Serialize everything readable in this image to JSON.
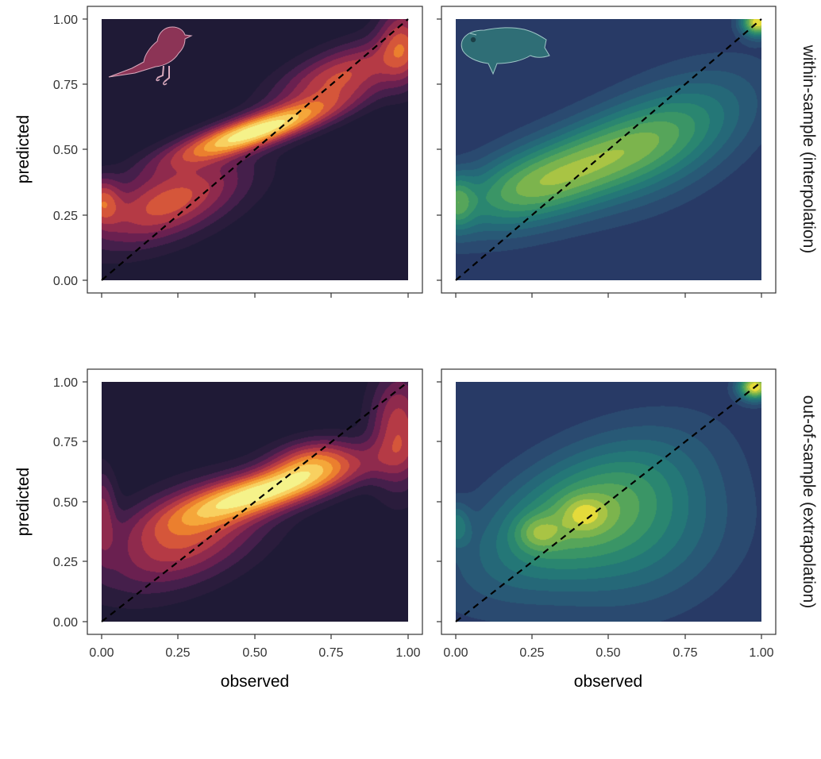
{
  "chart_data": {
    "type": "heatmap",
    "description_type": "2d-density-contour",
    "layout": {
      "rows": 2,
      "cols": 2
    },
    "xlabel": "observed",
    "ylabel": "predicted",
    "xlim": [
      0,
      1
    ],
    "ylim": [
      0,
      1
    ],
    "x_ticks": [
      "0.00",
      "0.25",
      "0.50",
      "0.75",
      "1.00"
    ],
    "y_ticks": [
      "0.00",
      "0.25",
      "0.50",
      "0.75",
      "1.00"
    ],
    "row_strips": [
      "within-sample (interpolation)",
      "out-of-sample (extrapolation)"
    ],
    "reference_line": {
      "type": "identity",
      "from": [
        0,
        0
      ],
      "to": [
        1,
        1
      ],
      "style": "dashed",
      "color": "#000000"
    },
    "palettes": {
      "inferno": [
        "#1f1a36",
        "#2a1c3c",
        "#451f4b",
        "#6a2050",
        "#8f2a4d",
        "#b53a45",
        "#d5563a",
        "#eb7f2e",
        "#f5a73a",
        "#f8d060",
        "#f5f28a"
      ],
      "viridis": [
        "#283a66",
        "#2a4a70",
        "#285976",
        "#256878",
        "#247777",
        "#2a8670",
        "#3a9566",
        "#56a55a",
        "#7cb44d",
        "#a9c444",
        "#e4db3b"
      ]
    },
    "panels": [
      {
        "row": 0,
        "col": 0,
        "taxon": "bird-icon",
        "palette": "inferno",
        "density_peaks": [
          {
            "x": 0.5,
            "y": 0.57,
            "sx": 0.17,
            "sy": 0.075,
            "rho": 0.82,
            "w": 1.0
          },
          {
            "x": 0.22,
            "y": 0.3,
            "sx": 0.16,
            "sy": 0.11,
            "rho": 0.55,
            "w": 0.55
          },
          {
            "x": 0.78,
            "y": 0.78,
            "sx": 0.14,
            "sy": 0.09,
            "rho": 0.6,
            "w": 0.5
          },
          {
            "x": 0.0,
            "y": 0.3,
            "sx": 0.04,
            "sy": 0.06,
            "rho": 0.0,
            "w": 0.45
          },
          {
            "x": 0.98,
            "y": 0.9,
            "sx": 0.05,
            "sy": 0.1,
            "rho": 0.0,
            "w": 0.45
          }
        ]
      },
      {
        "row": 0,
        "col": 1,
        "taxon": "fish-icon",
        "palette": "viridis",
        "density_peaks": [
          {
            "x": 0.42,
            "y": 0.44,
            "sx": 0.22,
            "sy": 0.14,
            "rho": 0.65,
            "w": 0.62
          },
          {
            "x": 0.0,
            "y": 0.3,
            "sx": 0.04,
            "sy": 0.07,
            "rho": 0.0,
            "w": 0.45
          },
          {
            "x": 0.99,
            "y": 0.99,
            "sx": 0.035,
            "sy": 0.035,
            "rho": 0.0,
            "w": 1.0
          },
          {
            "x": 0.7,
            "y": 0.55,
            "sx": 0.18,
            "sy": 0.16,
            "rho": 0.5,
            "w": 0.35
          },
          {
            "x": 0.2,
            "y": 0.35,
            "sx": 0.15,
            "sy": 0.1,
            "rho": 0.4,
            "w": 0.3
          }
        ]
      },
      {
        "row": 1,
        "col": 0,
        "taxon": "bird",
        "palette": "inferno",
        "density_peaks": [
          {
            "x": 0.55,
            "y": 0.55,
            "sx": 0.2,
            "sy": 0.09,
            "rho": 0.75,
            "w": 1.0
          },
          {
            "x": 0.27,
            "y": 0.35,
            "sx": 0.17,
            "sy": 0.14,
            "rho": 0.45,
            "w": 0.55
          },
          {
            "x": 0.68,
            "y": 0.68,
            "sx": 0.09,
            "sy": 0.06,
            "rho": 0.3,
            "w": 0.45
          },
          {
            "x": 0.97,
            "y": 0.8,
            "sx": 0.06,
            "sy": 0.16,
            "rho": 0.0,
            "w": 0.5
          },
          {
            "x": 0.0,
            "y": 0.45,
            "sx": 0.03,
            "sy": 0.12,
            "rho": 0.0,
            "w": 0.35
          }
        ]
      },
      {
        "row": 1,
        "col": 1,
        "taxon": "fish",
        "palette": "viridis",
        "density_peaks": [
          {
            "x": 0.4,
            "y": 0.45,
            "sx": 0.22,
            "sy": 0.2,
            "rho": 0.55,
            "w": 0.55
          },
          {
            "x": 0.98,
            "y": 0.98,
            "sx": 0.035,
            "sy": 0.035,
            "rho": 0.0,
            "w": 1.0
          },
          {
            "x": 0.27,
            "y": 0.37,
            "sx": 0.05,
            "sy": 0.05,
            "rho": 0.0,
            "w": 0.3
          },
          {
            "x": 0.42,
            "y": 0.45,
            "sx": 0.05,
            "sy": 0.05,
            "rho": 0.0,
            "w": 0.28
          },
          {
            "x": 0.0,
            "y": 0.4,
            "sx": 0.03,
            "sy": 0.06,
            "rho": 0.0,
            "w": 0.3
          },
          {
            "x": 0.6,
            "y": 0.35,
            "sx": 0.2,
            "sy": 0.2,
            "rho": 0.2,
            "w": 0.3
          }
        ]
      }
    ]
  }
}
